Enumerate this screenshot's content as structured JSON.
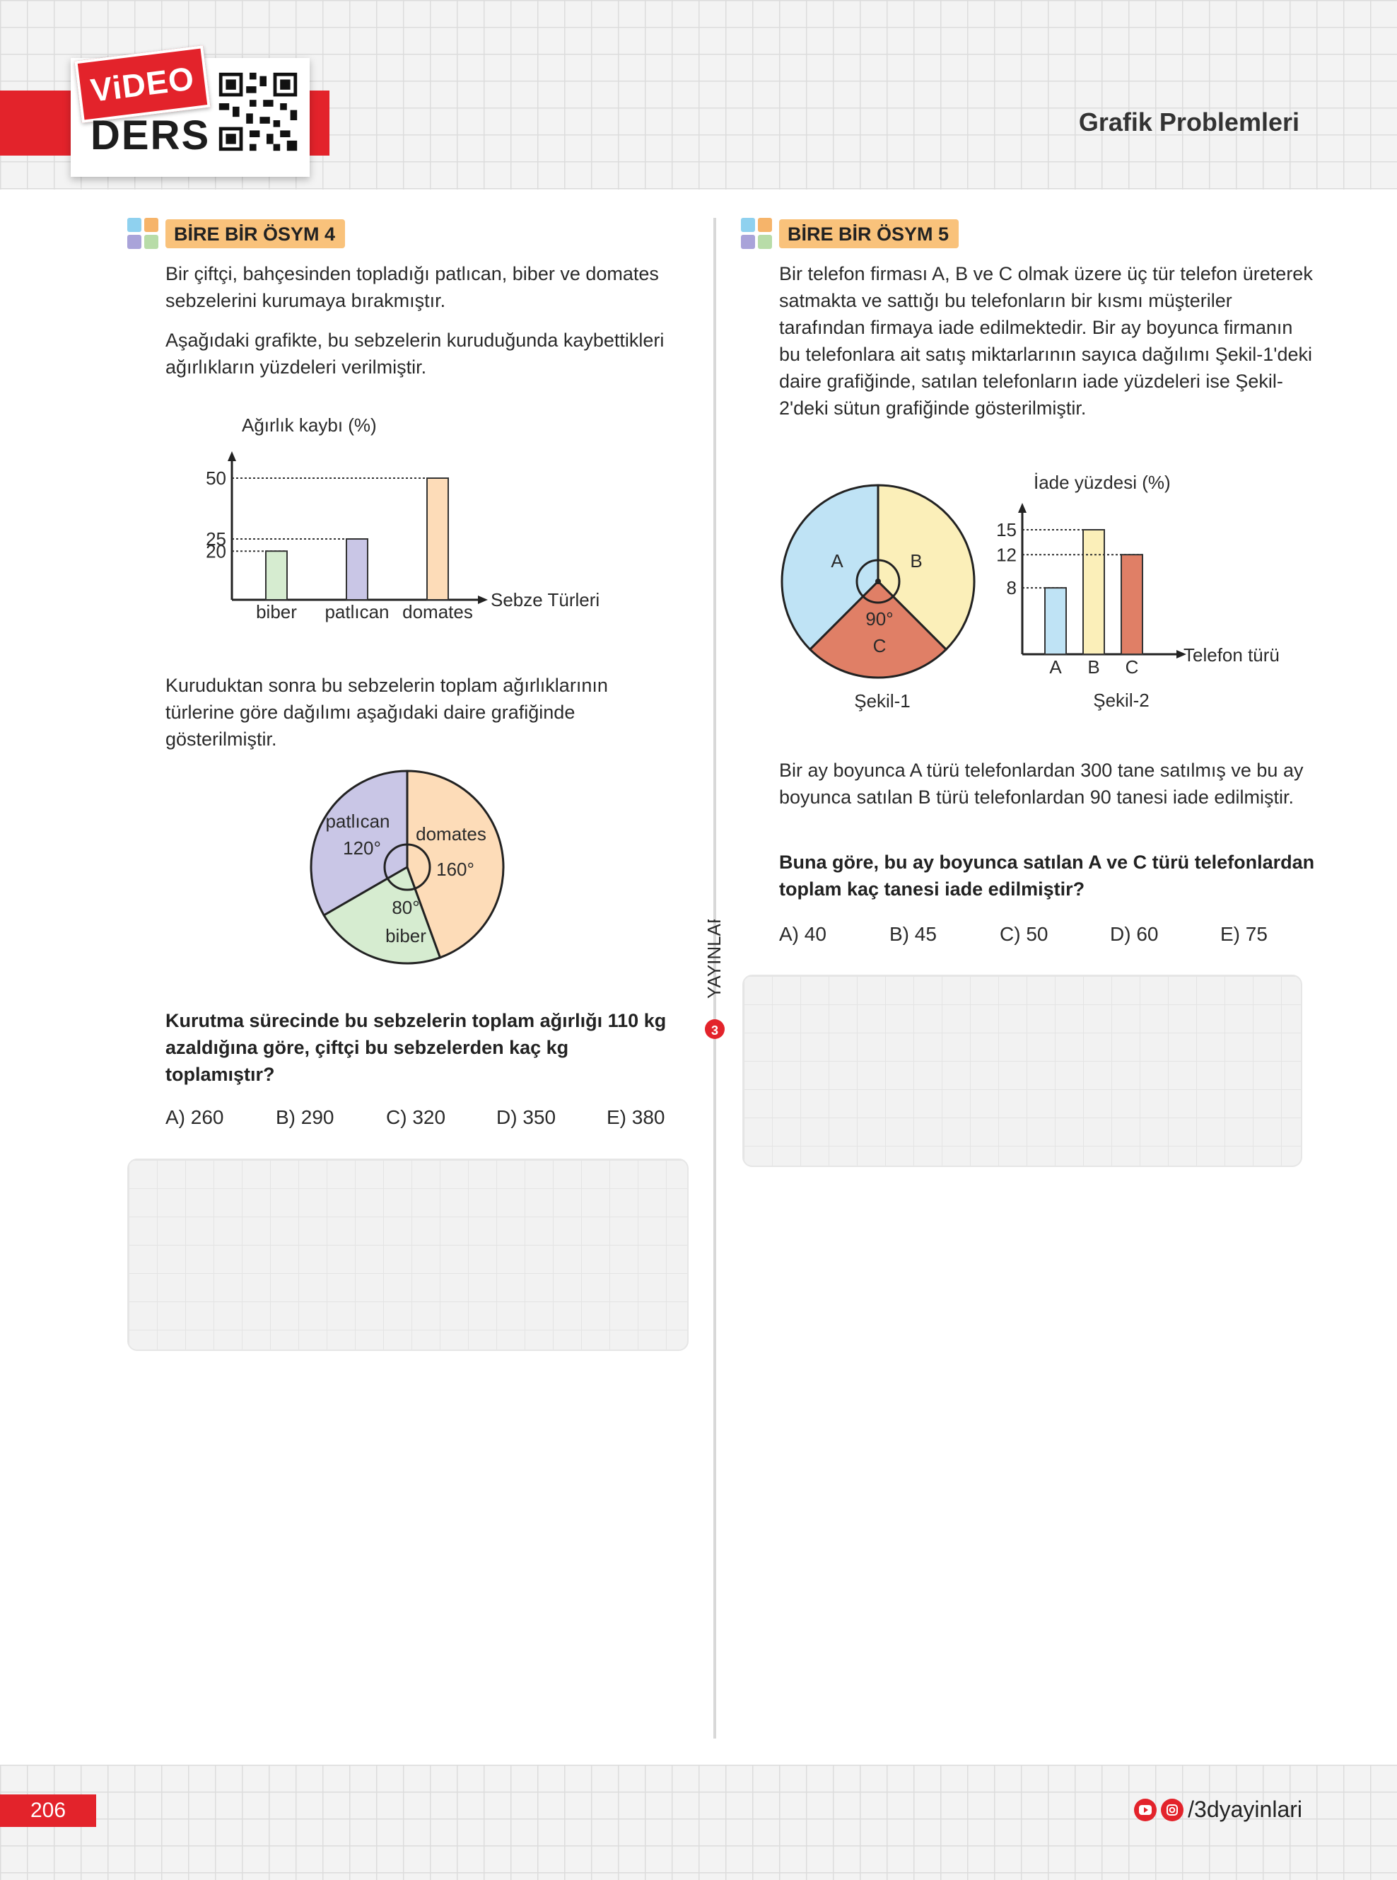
{
  "header": {
    "badge_top": "ViDEO",
    "badge_bottom": "DERS",
    "page_title": "Grafik Problemleri"
  },
  "colors": {
    "accent_red": "#e3232b",
    "label_orange": "#f9c27b",
    "green": "#d6ecd0",
    "purple": "#c9c6e6",
    "peach": "#fddcb8",
    "blue": "#bfe3f5",
    "yellow": "#fbefb9",
    "terracotta": "#e07f66"
  },
  "side_brand": "YAYINLARI",
  "q4": {
    "label": "BİRE BİR ÖSYM 4",
    "p1": "Bir çiftçi, bahçesinden topladığı patlıcan, biber ve domates sebzelerini kurumaya bırakmıştır.",
    "p2": "Aşağıdaki grafikte, bu sebzelerin kuruduğunda kaybettikleri ağırlıkların yüzdeleri verilmiştir.",
    "p3": "Kuruduktan sonra bu sebzelerin toplam ağırlıklarının türlerine göre dağılımı aşağıdaki daire grafiğinde gösterilmiştir.",
    "question": "Kurutma sürecinde bu sebzelerin toplam ağırlığı 110 kg azaldığına göre, çiftçi bu sebzelerden kaç kg toplamıştır?",
    "choices": [
      "A) 260",
      "B) 290",
      "C) 320",
      "D) 350",
      "E) 380"
    ]
  },
  "q5": {
    "label": "BİRE BİR ÖSYM 5",
    "p1": "Bir telefon firması A, B ve C olmak üzere üç tür telefon üreterek satmakta ve sattığı bu telefonların bir kısmı müşteriler tarafından firmaya iade edilmektedir. Bir ay boyunca firmanın bu telefonlara ait satış miktarlarının sayıca dağılımı Şekil-1'deki daire grafiğinde, satılan telefonların iade yüzdeleri ise Şekil-2'deki sütun grafiğinde gösterilmiştir.",
    "p2": "Bir ay boyunca A türü telefonlardan 300 tane satılmış ve bu ay boyunca satılan B türü telefonlardan 90 tanesi iade edilmiştir.",
    "question": "Buna göre, bu ay boyunca satılan A ve C türü telefonlardan toplam kaç tanesi iade edilmiştir?",
    "choices": [
      "A) 40",
      "B) 45",
      "C) 50",
      "D) 60",
      "E) 75"
    ]
  },
  "chart_data": [
    {
      "type": "bar",
      "ylabel": "Ağırlık kaybı (%)",
      "xlabel": "Sebze Türleri",
      "categories": [
        "biber",
        "patlıcan",
        "domates"
      ],
      "values": [
        20,
        25,
        50
      ],
      "yticks": [
        "20",
        "25",
        "50"
      ],
      "colors": [
        "#d6ecd0",
        "#c9c6e6",
        "#fddcb8"
      ],
      "grid": false
    },
    {
      "type": "pie",
      "slices": [
        {
          "label": "patlıcan",
          "angle_label": "120°",
          "value": 120,
          "color": "#c9c6e6"
        },
        {
          "label": "domates",
          "angle_label": "160°",
          "value": 160,
          "color": "#fddcb8"
        },
        {
          "label": "biber",
          "angle_label": "80°",
          "value": 80,
          "color": "#d6ecd0"
        }
      ]
    },
    {
      "type": "pie",
      "caption": "Şekil-1",
      "slices": [
        {
          "label": "A",
          "value": 135,
          "color": "#bfe3f5"
        },
        {
          "label": "B",
          "value": 135,
          "color": "#fbefb9"
        },
        {
          "label": "C",
          "angle_label": "90°",
          "value": 90,
          "color": "#e07f66"
        }
      ]
    },
    {
      "type": "bar",
      "caption": "Şekil-2",
      "ylabel": "İade yüzdesi (%)",
      "xlabel": "Telefon türü",
      "categories": [
        "A",
        "B",
        "C"
      ],
      "values": [
        8,
        15,
        12
      ],
      "yticks": [
        "8",
        "12",
        "15"
      ],
      "colors": [
        "#bfe3f5",
        "#fbefb9",
        "#e07f66"
      ],
      "grid": false
    }
  ],
  "footer": {
    "page_number": "206",
    "social": "/3dyayinlari"
  }
}
